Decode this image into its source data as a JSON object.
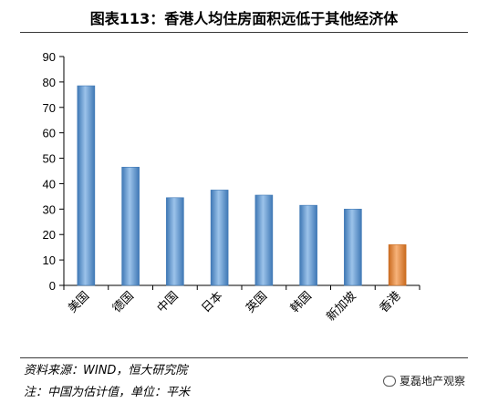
{
  "title": "图表113：香港人均住房面积远低于其他经济体",
  "source_text": "资料来源：WIND，恒大研究院",
  "note_text": "注：中国为估计值，单位：平米",
  "watermark": "夏磊地产观察",
  "colors": {
    "bar": "#5b9bd5",
    "bar_edge": "#3f78b5",
    "highlight": "#f0862d",
    "highlight_edge": "#c96a1e"
  },
  "chart_data": {
    "type": "bar",
    "categories": [
      "美国",
      "德国",
      "中国",
      "日本",
      "英国",
      "韩国",
      "新加坡",
      "香港"
    ],
    "values": [
      78.5,
      46.5,
      34.5,
      37.5,
      35.5,
      31.5,
      30,
      16
    ],
    "highlight_category": "香港",
    "title": "图表113：香港人均住房面积远低于其他经济体",
    "xlabel": "",
    "ylabel": "",
    "ylim": [
      0,
      90
    ],
    "yticks": [
      0,
      10,
      20,
      30,
      40,
      50,
      60,
      70,
      80,
      90
    ],
    "grid": false
  }
}
